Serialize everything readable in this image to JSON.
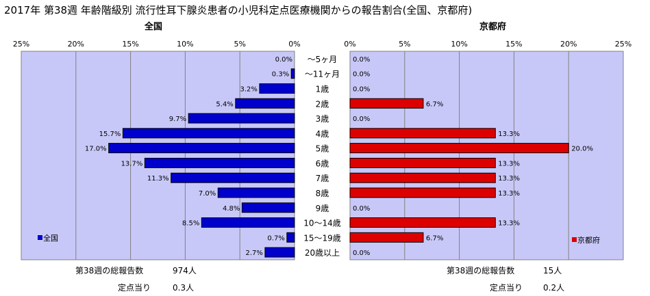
{
  "title": "2017年 第38週 年齢階級別 流行性耳下腺炎患者の小児科定点医療機関からの報告割合(全国、京都府)",
  "chart_data": {
    "type": "bar",
    "categories": [
      "～5ヶ月",
      "～11ヶ月",
      "1歳",
      "2歳",
      "3歳",
      "4歳",
      "5歳",
      "6歳",
      "7歳",
      "8歳",
      "9歳",
      "10～14歳",
      "15～19歳",
      "20歳以上"
    ],
    "series": [
      {
        "name": "全国",
        "color": "#0000CC",
        "values": [
          0.0,
          0.3,
          3.2,
          5.4,
          9.7,
          15.7,
          17.0,
          13.7,
          11.3,
          7.0,
          4.8,
          8.5,
          0.7,
          2.7
        ],
        "labels": [
          "0.0%",
          "0.3%",
          "3.2%",
          "5.4%",
          "9.7%",
          "15.7%",
          "17.0%",
          "13.7%",
          "11.3%",
          "7.0%",
          "4.8%",
          "8.5%",
          "0.7%",
          "2.7%"
        ]
      },
      {
        "name": "京都府",
        "color": "#DD0000",
        "values": [
          0.0,
          0.0,
          0.0,
          6.7,
          0.0,
          13.3,
          20.0,
          13.3,
          13.3,
          13.3,
          0.0,
          13.3,
          6.7,
          0.0
        ],
        "labels": [
          "0.0%",
          "0.0%",
          "0.0%",
          "6.7%",
          "0.0%",
          "13.3%",
          "20.0%",
          "13.3%",
          "13.3%",
          "13.3%",
          "0.0%",
          "13.3%",
          "6.7%",
          "0.0%"
        ]
      }
    ],
    "xlim": [
      0,
      25
    ],
    "left_ticks": [
      "25%",
      "20%",
      "15%",
      "10%",
      "5%",
      "0%"
    ],
    "right_ticks": [
      "0%",
      "5%",
      "10%",
      "15%",
      "20%",
      "25%"
    ],
    "panel_titles": {
      "left": "全国",
      "right": "京都府"
    },
    "legend": {
      "left": "全国",
      "right": "京都府"
    },
    "panel_background": "#C8C8F8"
  },
  "footer": {
    "left": {
      "total_label": "第38週の総報告数",
      "total_value": "974人",
      "per_label": "定点当り",
      "per_value": "0.3人"
    },
    "right": {
      "total_label": "第38週の総報告数",
      "total_value": "15人",
      "per_label": "定点当り",
      "per_value": "0.2人"
    }
  }
}
